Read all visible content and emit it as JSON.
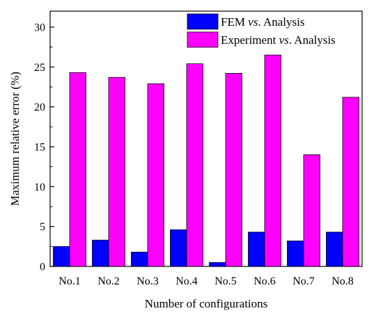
{
  "chart_data": {
    "type": "bar",
    "title": "",
    "xlabel": "Number of configurations",
    "ylabel": "Maximum relative error (%)",
    "ylim": [
      0,
      32
    ],
    "yticks": [
      0,
      5,
      10,
      15,
      20,
      25,
      30
    ],
    "categories": [
      "No.1",
      "No.2",
      "No.3",
      "No.4",
      "No.5",
      "No.6",
      "No.7",
      "No.8"
    ],
    "series": [
      {
        "name": "FEM vs. Analysis",
        "name_parts": [
          "FEM ",
          "vs",
          ". Analysis"
        ],
        "color": "#0000ff",
        "values": [
          2.5,
          3.3,
          1.8,
          4.6,
          0.5,
          4.3,
          3.2,
          4.3
        ]
      },
      {
        "name": "Experiment vs. Analysis",
        "name_parts": [
          "Experiment ",
          "vs",
          ". Analysis"
        ],
        "color": "#ff00ff",
        "values": [
          24.3,
          23.7,
          22.9,
          25.4,
          24.2,
          26.5,
          14.0,
          21.2
        ]
      }
    ],
    "legend": "top-right",
    "grid": false
  }
}
